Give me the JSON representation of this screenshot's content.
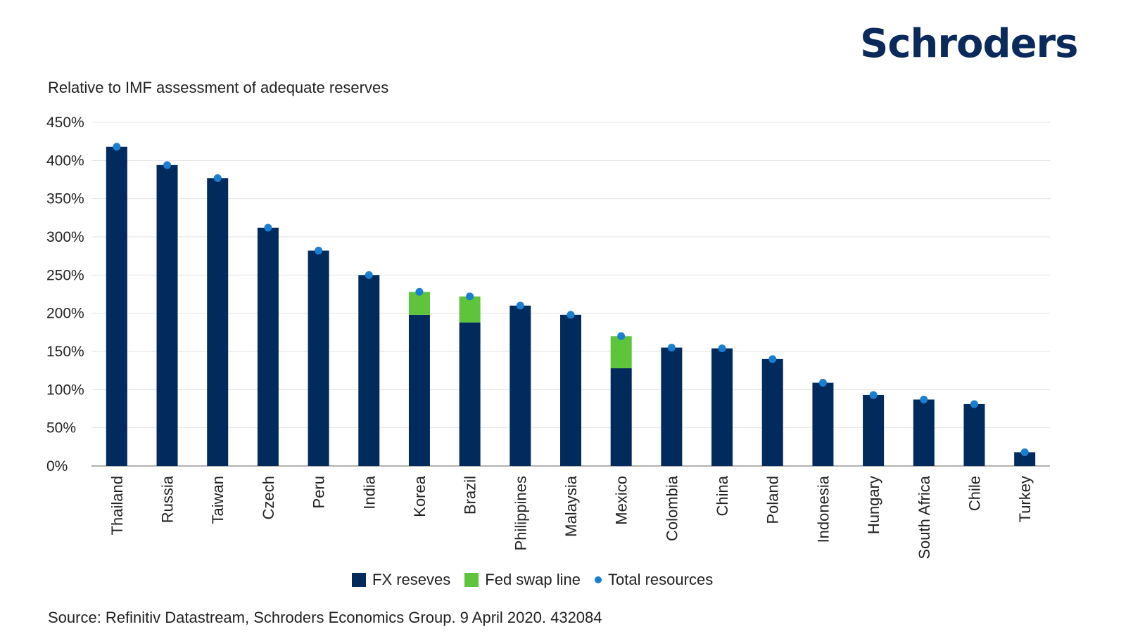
{
  "logo_text": "Schroders",
  "source": "Source: Refinitiv Datastream, Schroders Economics Group. 9 April 2020. 432084",
  "colors": {
    "fx": "#002b5c",
    "swap": "#5ec43c",
    "total": "#1a7fd1",
    "grid": "#e3e3e3",
    "axis": "#999999"
  },
  "chart_data": {
    "type": "bar",
    "stacked": true,
    "subtitle": "Relative to IMF assessment of adequate reserves",
    "categories": [
      "Thailand",
      "Russia",
      "Taiwan",
      "Czech",
      "Peru",
      "India",
      "Korea",
      "Brazil",
      "Philippines",
      "Malaysia",
      "Mexico",
      "Colombia",
      "China",
      "Poland",
      "Indonesia",
      "Hungary",
      "South Africa",
      "Chile",
      "Turkey"
    ],
    "series": [
      {
        "name": "FX reseves",
        "values": [
          418,
          394,
          377,
          312,
          282,
          250,
          198,
          188,
          210,
          198,
          128,
          155,
          154,
          140,
          109,
          93,
          87,
          81,
          18
        ]
      },
      {
        "name": "Fed swap line",
        "values": [
          0,
          0,
          0,
          0,
          0,
          0,
          30,
          34,
          0,
          0,
          42,
          0,
          0,
          0,
          0,
          0,
          0,
          0,
          0
        ]
      },
      {
        "name": "Total resources",
        "type": "scatter",
        "values": [
          418,
          394,
          377,
          312,
          282,
          250,
          228,
          222,
          210,
          198,
          170,
          155,
          154,
          140,
          109,
          93,
          87,
          81,
          18
        ]
      }
    ],
    "yticks": [
      "0%",
      "50%",
      "100%",
      "150%",
      "200%",
      "250%",
      "300%",
      "350%",
      "400%",
      "450%"
    ],
    "ylim": [
      0,
      450
    ],
    "grid": true,
    "legend": "bottom-center"
  }
}
